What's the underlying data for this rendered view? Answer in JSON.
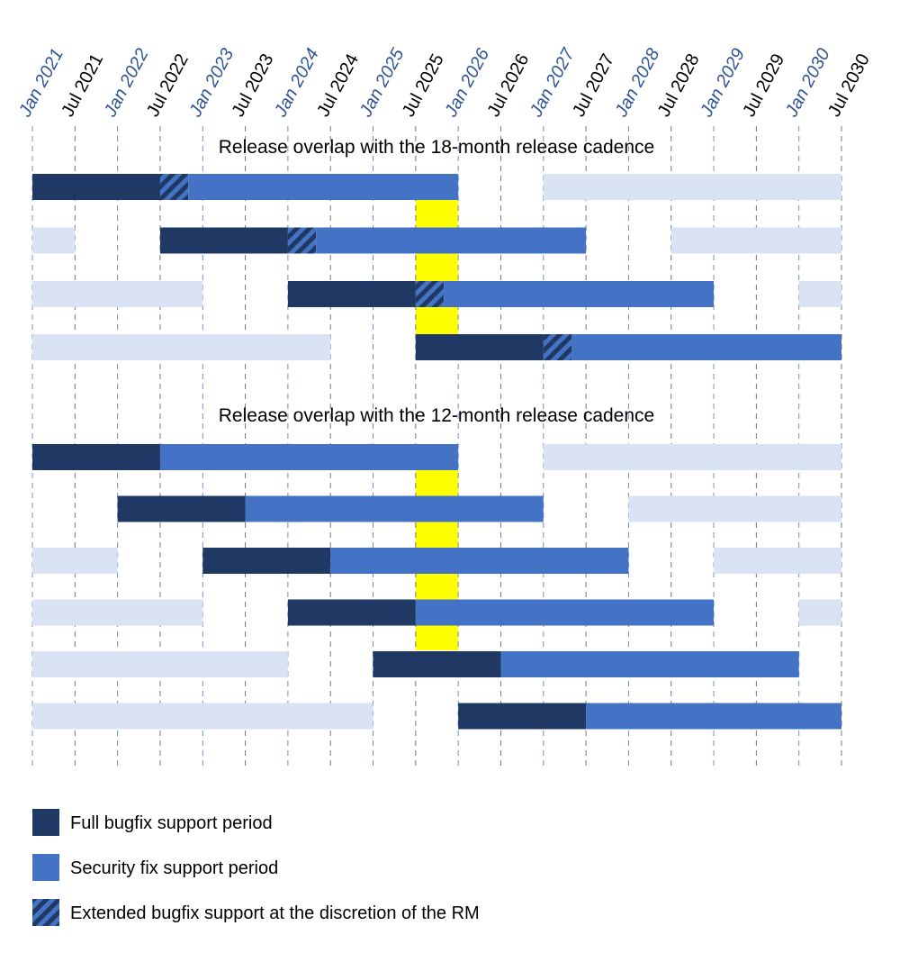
{
  "chart_data": {
    "type": "gantt",
    "xlim": [
      2021,
      2030.5
    ],
    "xticks": [
      {
        "value": 2021,
        "label": "Jan 2021"
      },
      {
        "value": 2021.5,
        "label": "Jul 2021"
      },
      {
        "value": 2022,
        "label": "Jan 2022"
      },
      {
        "value": 2022.5,
        "label": "Jul 2022"
      },
      {
        "value": 2023,
        "label": "Jan 2023"
      },
      {
        "value": 2023.5,
        "label": "Jul 2023"
      },
      {
        "value": 2024,
        "label": "Jan 2024"
      },
      {
        "value": 2024.5,
        "label": "Jul 2024"
      },
      {
        "value": 2025,
        "label": "Jan 2025"
      },
      {
        "value": 2025.5,
        "label": "Jul 2025"
      },
      {
        "value": 2026,
        "label": "Jan 2026"
      },
      {
        "value": 2026.5,
        "label": "Jul 2026"
      },
      {
        "value": 2027,
        "label": "Jan 2027"
      },
      {
        "value": 2027.5,
        "label": "Jul 2027"
      },
      {
        "value": 2028,
        "label": "Jan 2028"
      },
      {
        "value": 2028.5,
        "label": "Jul 2028"
      },
      {
        "value": 2029,
        "label": "Jan 2029"
      },
      {
        "value": 2029.5,
        "label": "Jul 2029"
      },
      {
        "value": 2030,
        "label": "Jan 2030"
      },
      {
        "value": 2030.5,
        "label": "Jul 2030"
      }
    ],
    "xtick_colors": [
      "#2f5597",
      "#000000"
    ],
    "grid": true,
    "series": [
      {
        "name": "Full bugfix support period",
        "color": "#203864"
      },
      {
        "name": "Security fix support period",
        "color": "#4472c4"
      },
      {
        "name": "Extended bugfix support at the discretion of the RM",
        "color": "#203864",
        "pattern": "hatch"
      }
    ],
    "other_color": "#dae3f3",
    "highlight_color": "#ffff00",
    "panels": [
      {
        "title": "Release overlap with the 18-month release cadence",
        "highlight": [
          2025.5,
          2026
        ],
        "rows": [
          [
            {
              "series": 0,
              "start": 2021,
              "end": 2022.5
            },
            {
              "series": 2,
              "start": 2022.5,
              "end": 2022.83
            },
            {
              "series": 1,
              "start": 2022.83,
              "end": 2026
            },
            {
              "start": 2027,
              "end": 2030.5
            }
          ],
          [
            {
              "start": 2021,
              "end": 2021.5
            },
            {
              "series": 0,
              "start": 2022.5,
              "end": 2024
            },
            {
              "series": 2,
              "start": 2024,
              "end": 2024.33
            },
            {
              "series": 1,
              "start": 2024.33,
              "end": 2027.5
            },
            {
              "start": 2028.5,
              "end": 2030.5
            }
          ],
          [
            {
              "start": 2021,
              "end": 2023
            },
            {
              "series": 0,
              "start": 2024,
              "end": 2025.5
            },
            {
              "series": 2,
              "start": 2025.5,
              "end": 2025.83
            },
            {
              "series": 1,
              "start": 2025.83,
              "end": 2029
            },
            {
              "start": 2030,
              "end": 2030.5
            }
          ],
          [
            {
              "start": 2021,
              "end": 2024.5
            },
            {
              "series": 0,
              "start": 2025.5,
              "end": 2027
            },
            {
              "series": 2,
              "start": 2027,
              "end": 2027.33
            },
            {
              "series": 1,
              "start": 2027.33,
              "end": 2030.5
            }
          ]
        ]
      },
      {
        "title": "Release overlap with the 12-month release cadence",
        "highlight": [
          2025.5,
          2026
        ],
        "rows": [
          [
            {
              "series": 0,
              "start": 2021,
              "end": 2022.5
            },
            {
              "series": 1,
              "start": 2022.5,
              "end": 2026
            },
            {
              "start": 2027,
              "end": 2030.5
            }
          ],
          [
            {
              "series": 0,
              "start": 2022,
              "end": 2023.5
            },
            {
              "series": 1,
              "start": 2023.5,
              "end": 2027
            },
            {
              "start": 2028,
              "end": 2030.5
            }
          ],
          [
            {
              "start": 2021,
              "end": 2022
            },
            {
              "series": 0,
              "start": 2023,
              "end": 2024.5
            },
            {
              "series": 1,
              "start": 2024.5,
              "end": 2028
            },
            {
              "start": 2029,
              "end": 2030.5
            }
          ],
          [
            {
              "start": 2021,
              "end": 2023
            },
            {
              "series": 0,
              "start": 2024,
              "end": 2025.5
            },
            {
              "series": 1,
              "start": 2025.5,
              "end": 2029
            },
            {
              "start": 2030,
              "end": 2030.5
            }
          ],
          [
            {
              "start": 2021,
              "end": 2024
            },
            {
              "series": 0,
              "start": 2025,
              "end": 2026.5
            },
            {
              "series": 1,
              "start": 2026.5,
              "end": 2030
            }
          ],
          [
            {
              "start": 2021,
              "end": 2025
            },
            {
              "series": 0,
              "start": 2026,
              "end": 2027.5
            },
            {
              "series": 1,
              "start": 2027.5,
              "end": 2030.5
            }
          ]
        ]
      }
    ]
  }
}
